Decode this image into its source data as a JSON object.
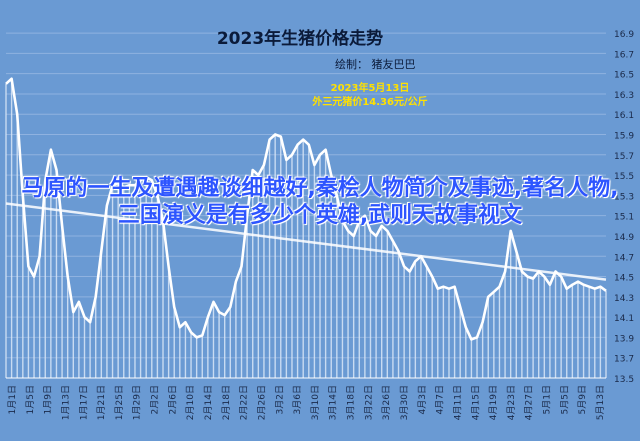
{
  "chart_data": {
    "type": "area",
    "title": "2023年生猪价格走势",
    "author": "绘制：  猪友巴巴",
    "annotation": {
      "date": "2023年5月13日",
      "text": "外三元猪价14.36元/公斤"
    },
    "ylim": [
      13.5,
      16.95
    ],
    "yticks": [
      "16.9",
      "16.7",
      "16.5",
      "16.3",
      "16.1",
      "15.9",
      "15.7",
      "15.5",
      "15.3",
      "15.1",
      "14.9",
      "14.7",
      "14.5",
      "14.3",
      "14.1",
      "13.9",
      "13.7",
      "13.5"
    ],
    "xticks": [
      "1月1日",
      "1月5日",
      "1月9日",
      "1月13日",
      "1月17日",
      "1月21日",
      "1月25日",
      "1月29日",
      "2月2日",
      "2月6日",
      "2月10日",
      "2月14日",
      "2月18日",
      "2月22日",
      "2月26日",
      "3月2日",
      "3月6日",
      "3月10日",
      "3月14日",
      "3月18日",
      "3月22日",
      "3月26日",
      "3月30日",
      "4月3日",
      "4月7日",
      "4月11日",
      "4月15日",
      "4月19日",
      "4月23日",
      "4月27日",
      "5月1日",
      "5月5日",
      "5月9日",
      "5月13日"
    ],
    "series": [
      {
        "values": [
          16.4,
          16.45,
          16.1,
          15.3,
          14.6,
          14.5,
          14.7,
          15.45,
          15.75,
          15.55,
          15.0,
          14.5,
          14.15,
          14.25,
          14.1,
          14.05,
          14.3,
          14.75,
          15.2,
          15.4,
          15.42,
          15.38,
          15.4,
          15.4,
          15.45,
          15.48,
          15.45,
          15.3,
          15.05,
          14.6,
          14.2,
          14.0,
          14.05,
          13.95,
          13.9,
          13.92,
          14.1,
          14.25,
          14.15,
          14.12,
          14.2,
          14.45,
          14.6,
          15.1,
          15.55,
          15.5,
          15.6,
          15.85,
          15.9,
          15.88,
          15.65,
          15.7,
          15.8,
          15.85,
          15.8,
          15.6,
          15.7,
          15.75,
          15.5,
          15.3,
          15.05,
          14.95,
          14.9,
          15.05,
          15.1,
          14.95,
          14.9,
          15.0,
          14.95,
          14.85,
          14.75,
          14.6,
          14.55,
          14.65,
          14.7,
          14.6,
          14.5,
          14.38,
          14.4,
          14.38,
          14.4,
          14.2,
          14.0,
          13.88,
          13.9,
          14.05,
          14.3,
          14.35,
          14.4,
          14.55,
          14.95,
          14.75,
          14.55,
          14.5,
          14.48,
          14.55,
          14.5,
          14.42,
          14.55,
          14.5,
          14.38,
          14.42,
          14.45,
          14.42,
          14.4,
          14.38,
          14.4,
          14.36
        ]
      }
    ],
    "trendline": [
      15.22,
      14.47
    ],
    "grid": true
  },
  "watermark": "马原的一生及遭遇趣谈细越好,秦桧人物简介及事迹,著名人物,三国演义是有多少个英雄,武则天故事视文"
}
